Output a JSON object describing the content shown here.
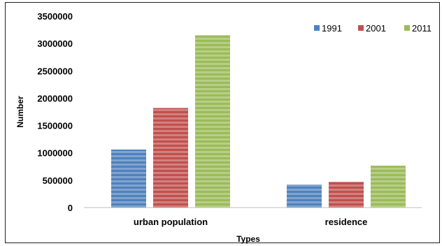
{
  "chart_data": {
    "type": "bar",
    "title": "",
    "xlabel": "Types",
    "ylabel": "Number",
    "categories": [
      "urban population",
      "residence"
    ],
    "series": [
      {
        "name": "1991",
        "color": "#4f81bd",
        "values": [
          1060000,
          420000
        ]
      },
      {
        "name": "2001",
        "color": "#c0504d",
        "values": [
          1820000,
          470000
        ]
      },
      {
        "name": "2011",
        "color": "#9bbb59",
        "values": [
          3150000,
          765000
        ]
      }
    ],
    "ylim": [
      0,
      3500000
    ],
    "yticks": [
      0,
      500000,
      1000000,
      1500000,
      2000000,
      2500000,
      3000000,
      3500000
    ],
    "ytick_labels": [
      "0",
      "500000",
      "1000000",
      "1500000",
      "2000000",
      "2500000",
      "3000000",
      "3500000"
    ],
    "grid": false,
    "legend_position": "top-right"
  }
}
